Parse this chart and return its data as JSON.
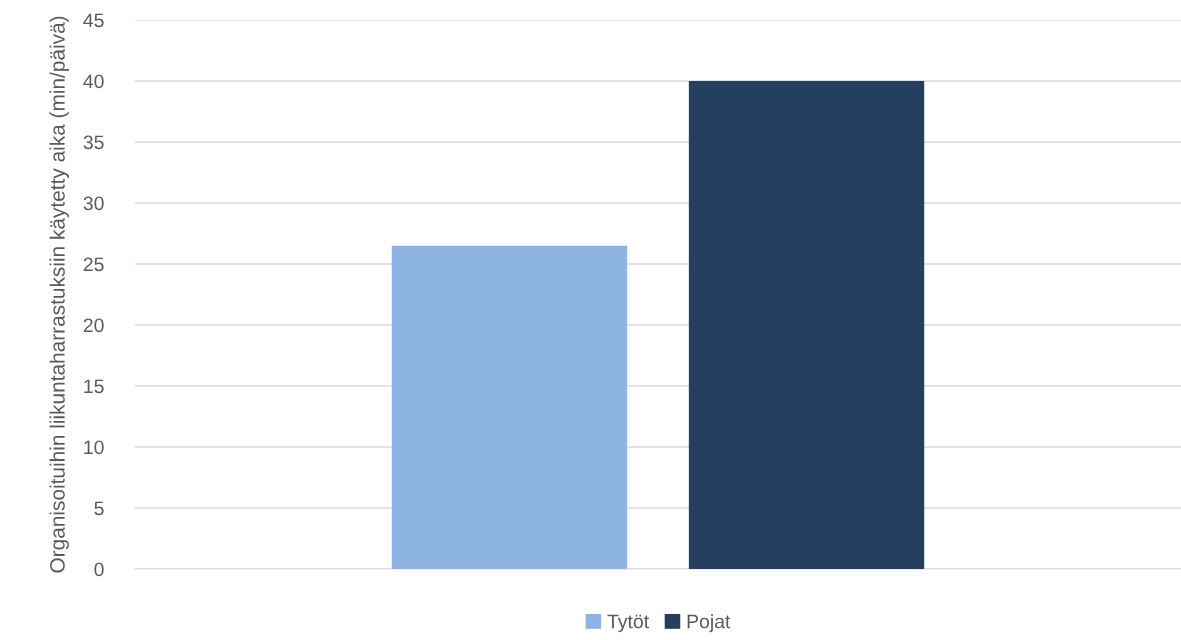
{
  "chart_data": {
    "type": "bar",
    "ylabel": "Organisoituihin liikuntaharrastuksiin käytetty aika (min/päivä)",
    "categories": [
      null
    ],
    "series": [
      {
        "name": "Tytöt",
        "color": "#8eb4e3",
        "values": [
          26.5
        ]
      },
      {
        "name": "Pojat",
        "color": "#253f5f",
        "values": [
          40
        ]
      }
    ],
    "ylim": [
      0,
      45
    ],
    "yticks": [
      0,
      5,
      10,
      15,
      20,
      25,
      30,
      35,
      40,
      45
    ],
    "grid": "y",
    "legend": "bottom"
  }
}
